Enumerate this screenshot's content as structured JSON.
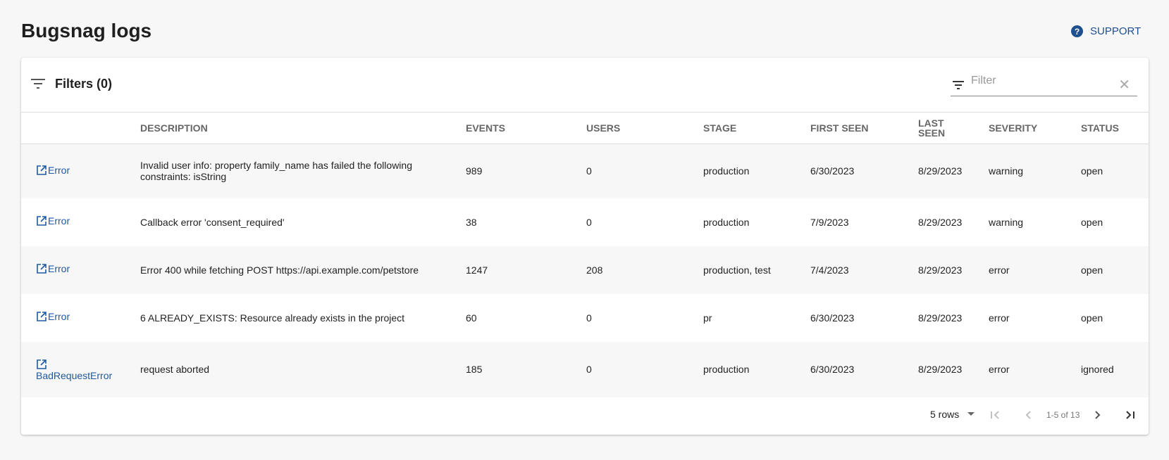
{
  "header": {
    "title": "Bugsnag logs",
    "support_label": "SUPPORT"
  },
  "toolbar": {
    "filters_label": "Filters (0)",
    "filter_placeholder": "Filter",
    "filter_value": ""
  },
  "table": {
    "columns": [
      "",
      "DESCRIPTION",
      "EVENTS",
      "USERS",
      "STAGE",
      "FIRST SEEN",
      "LAST SEEN",
      "SEVERITY",
      "STATUS"
    ],
    "rows": [
      {
        "link": "Error",
        "description": "Invalid user info: property family_name has failed the following constraints: isString",
        "events": "989",
        "users": "0",
        "stage": "production",
        "first_seen": "6/30/2023",
        "last_seen": "8/29/2023",
        "severity": "warning",
        "status": "open"
      },
      {
        "link": "Error",
        "description": "Callback error 'consent_required'",
        "events": "38",
        "users": "0",
        "stage": "production",
        "first_seen": "7/9/2023",
        "last_seen": "8/29/2023",
        "severity": "warning",
        "status": "open"
      },
      {
        "link": "Error",
        "description": "Error 400 while fetching POST https://api.example.com/petstore",
        "events": "1247",
        "users": "208",
        "stage": "production, test",
        "first_seen": "7/4/2023",
        "last_seen": "8/29/2023",
        "severity": "error",
        "status": "open"
      },
      {
        "link": "Error",
        "description": "6 ALREADY_EXISTS: Resource already exists in the project",
        "events": "60",
        "users": "0",
        "stage": "pr",
        "first_seen": "6/30/2023",
        "last_seen": "8/29/2023",
        "severity": "error",
        "status": "open"
      },
      {
        "link": "BadRequestError",
        "description": "request aborted",
        "events": "185",
        "users": "0",
        "stage": "production",
        "first_seen": "6/30/2023",
        "last_seen": "8/29/2023",
        "severity": "error",
        "status": "ignored"
      }
    ]
  },
  "pagination": {
    "rows_per_page": "5 rows",
    "range": "1-5 of 13"
  },
  "colors": {
    "link": "#1e5aa0",
    "background": "#f7f7f7"
  }
}
